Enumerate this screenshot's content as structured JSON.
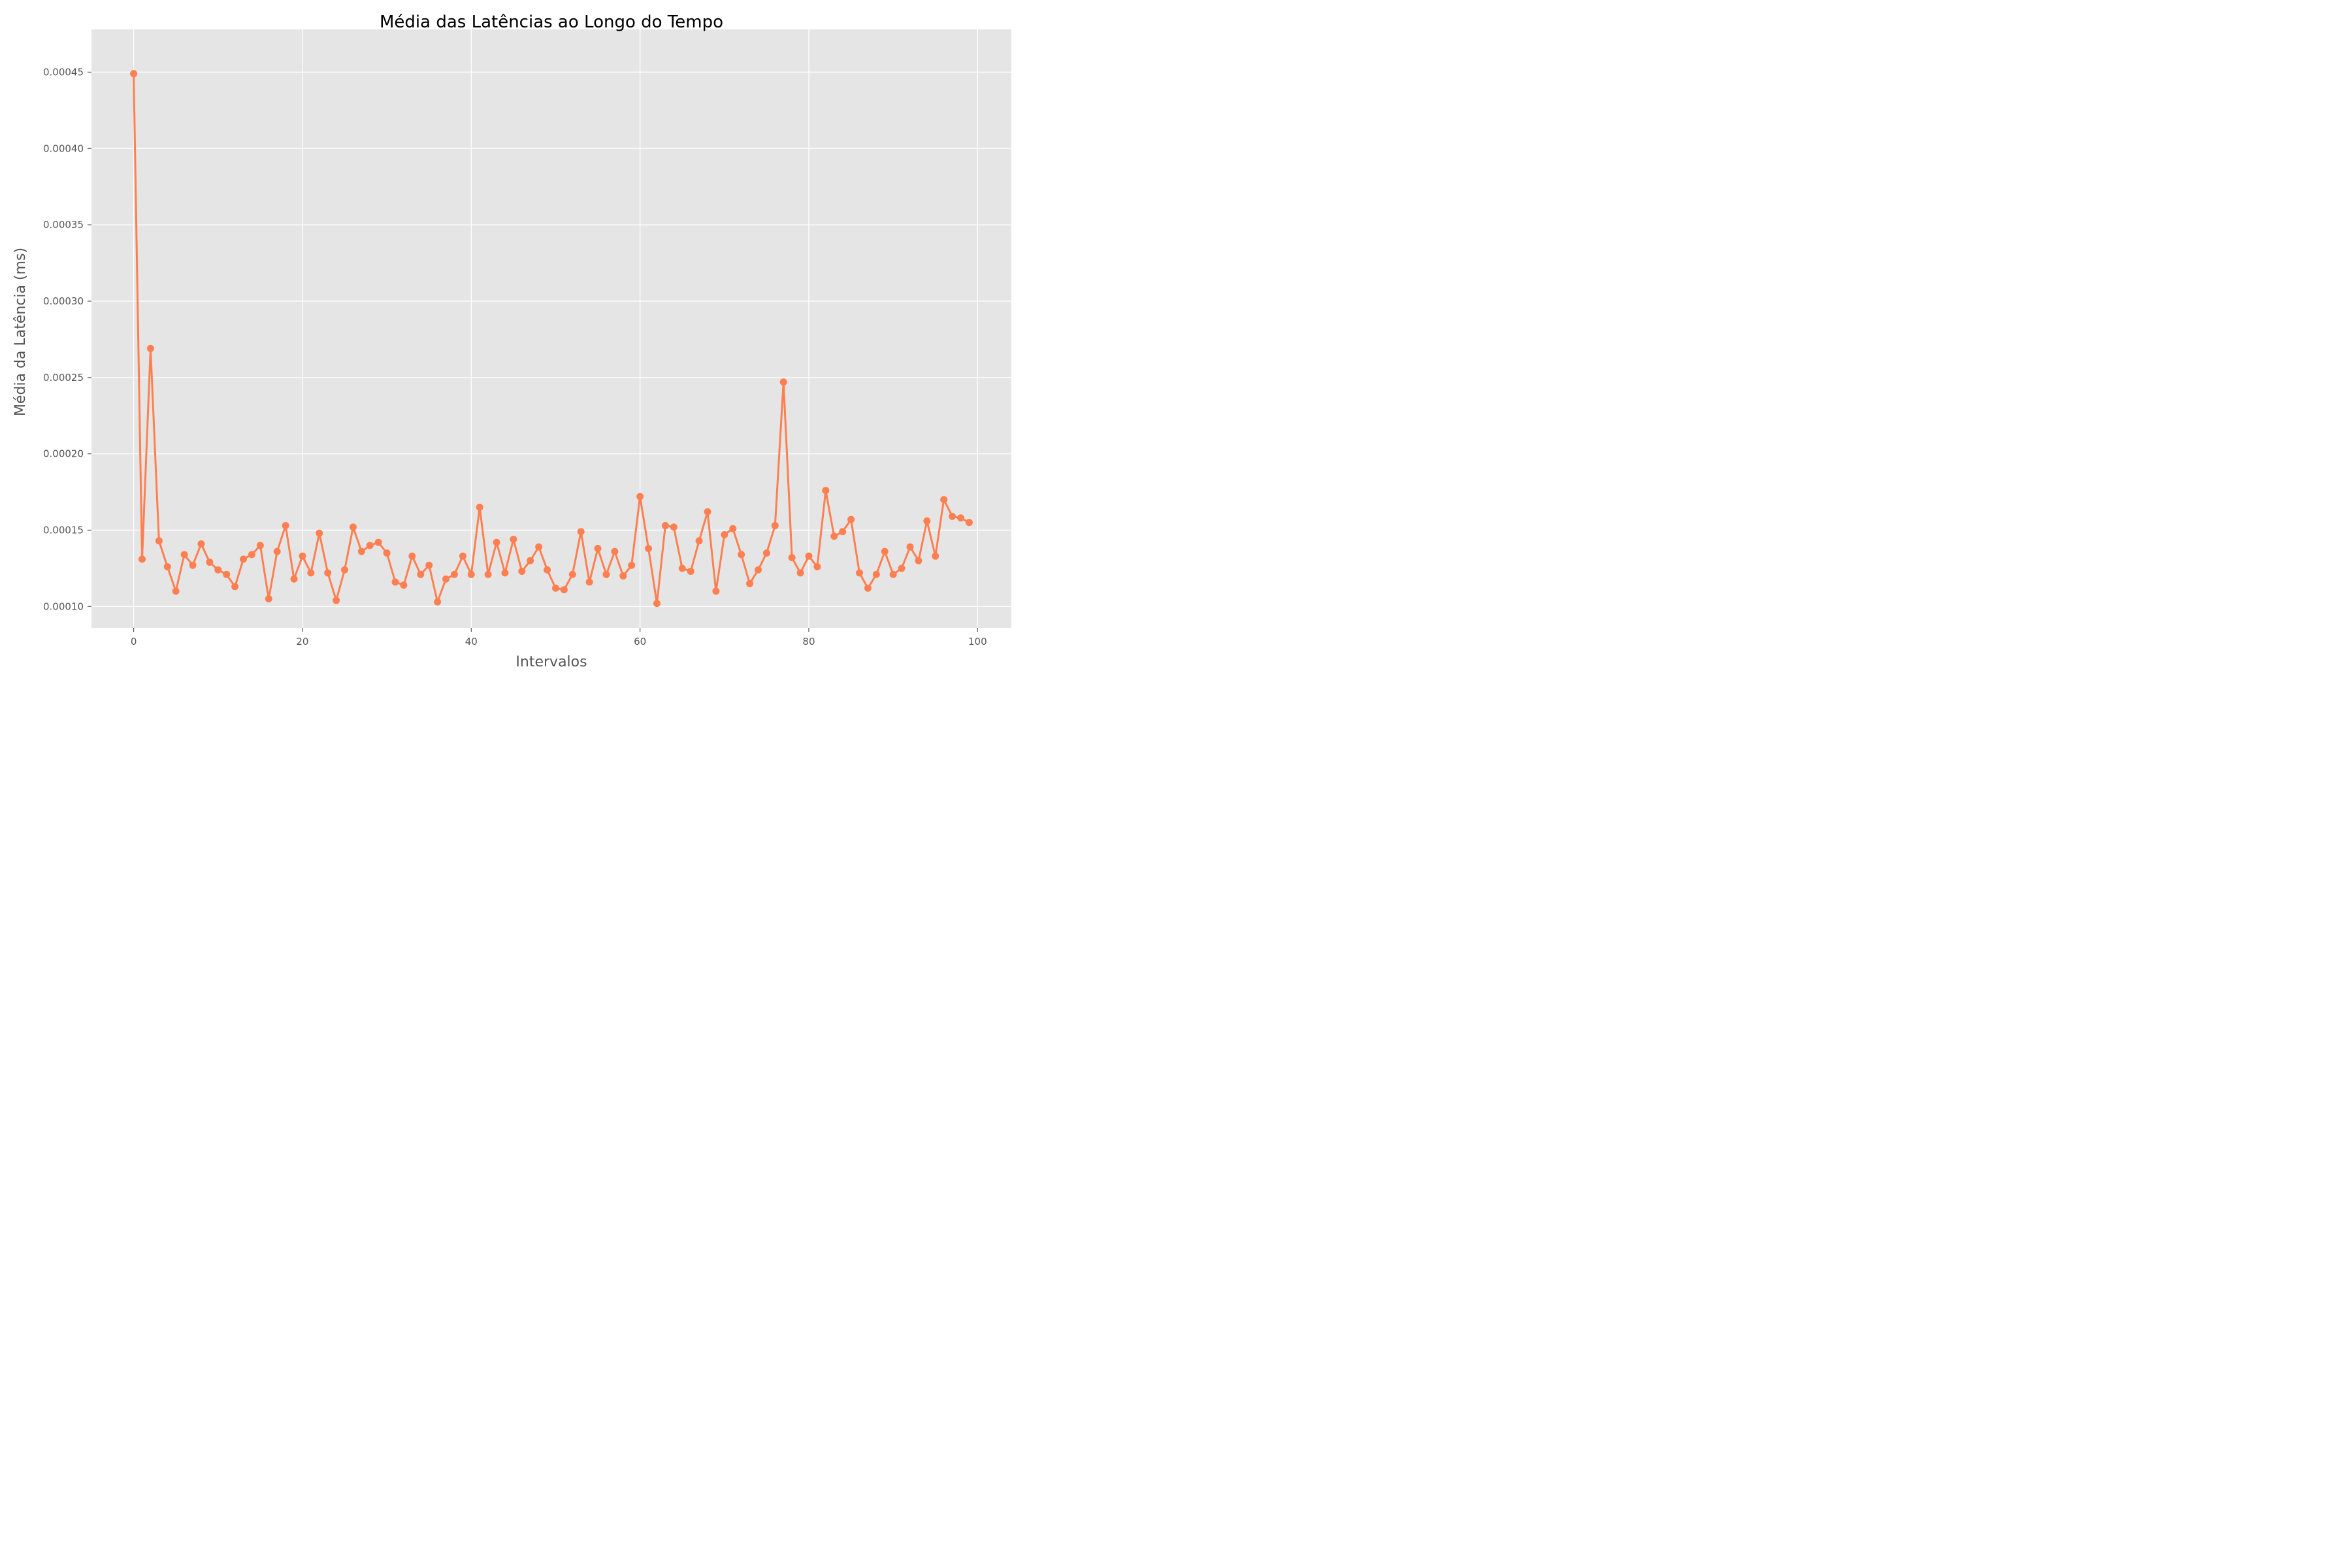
{
  "chart_data": {
    "type": "line",
    "title": "Média das Latências ao Longo do Tempo",
    "xlabel": "Intervalos",
    "ylabel": "Média da Latência (ms)",
    "xlim": [
      -5,
      104
    ],
    "ylim": [
      8.6e-05,
      0.000478
    ],
    "x_ticks": [
      0,
      20,
      40,
      60,
      80,
      100
    ],
    "x_tick_labels": [
      "0",
      "20",
      "40",
      "60",
      "80",
      "100"
    ],
    "y_ticks": [
      0.0001,
      0.00015,
      0.0002,
      0.00025,
      0.0003,
      0.00035,
      0.0004,
      0.00045
    ],
    "y_tick_labels": [
      "0.00010",
      "0.00015",
      "0.00020",
      "0.00025",
      "0.00030",
      "0.00035",
      "0.00040",
      "0.00045"
    ],
    "grid": true,
    "colors": {
      "line": "#ff7f50",
      "plot_background": "#e5e5e5",
      "grid": "#ffffff"
    },
    "marker": "circle",
    "x": [
      0,
      1,
      2,
      3,
      4,
      5,
      6,
      7,
      8,
      9,
      10,
      11,
      12,
      13,
      14,
      15,
      16,
      17,
      18,
      19,
      20,
      21,
      22,
      23,
      24,
      25,
      26,
      27,
      28,
      29,
      30,
      31,
      32,
      33,
      34,
      35,
      36,
      37,
      38,
      39,
      40,
      41,
      42,
      43,
      44,
      45,
      46,
      47,
      48,
      49,
      50,
      51,
      52,
      53,
      54,
      55,
      56,
      57,
      58,
      59,
      60,
      61,
      62,
      63,
      64,
      65,
      66,
      67,
      68,
      69,
      70,
      71,
      72,
      73,
      74,
      75,
      76,
      77,
      78,
      79,
      80,
      81,
      82,
      83,
      84,
      85,
      86,
      87,
      88,
      89,
      90,
      91,
      92,
      93,
      94,
      95,
      96,
      97,
      98,
      99
    ],
    "values": [
      0.000449,
      0.000131,
      0.000269,
      0.000143,
      0.000126,
      0.00011,
      0.000134,
      0.000127,
      0.000141,
      0.000129,
      0.000124,
      0.000121,
      0.000113,
      0.000131,
      0.000134,
      0.00014,
      0.000105,
      0.000136,
      0.000153,
      0.000118,
      0.000133,
      0.000122,
      0.000148,
      0.000122,
      0.000104,
      0.000124,
      0.000152,
      0.000136,
      0.00014,
      0.000142,
      0.000135,
      0.000116,
      0.000114,
      0.000133,
      0.000121,
      0.000127,
      0.000103,
      0.000118,
      0.000121,
      0.000133,
      0.000121,
      0.000165,
      0.000121,
      0.000142,
      0.000122,
      0.000144,
      0.000123,
      0.00013,
      0.000139,
      0.000124,
      0.000112,
      0.000111,
      0.000121,
      0.000149,
      0.000116,
      0.000138,
      0.000121,
      0.000136,
      0.00012,
      0.000127,
      0.000172,
      0.000138,
      0.000102,
      0.000153,
      0.000152,
      0.000125,
      0.000123,
      0.000143,
      0.000162,
      0.00011,
      0.000147,
      0.000151,
      0.000134,
      0.000115,
      0.000124,
      0.000135,
      0.000153,
      0.000247,
      0.000132,
      0.000122,
      0.000133,
      0.000126,
      0.000176,
      0.000146,
      0.000149,
      0.000157,
      0.000122,
      0.000112,
      0.000121,
      0.000136,
      0.000121,
      0.000125,
      0.000139,
      0.00013,
      0.000156,
      0.000133,
      0.00017,
      0.000159,
      0.000158,
      0.000155
    ]
  }
}
